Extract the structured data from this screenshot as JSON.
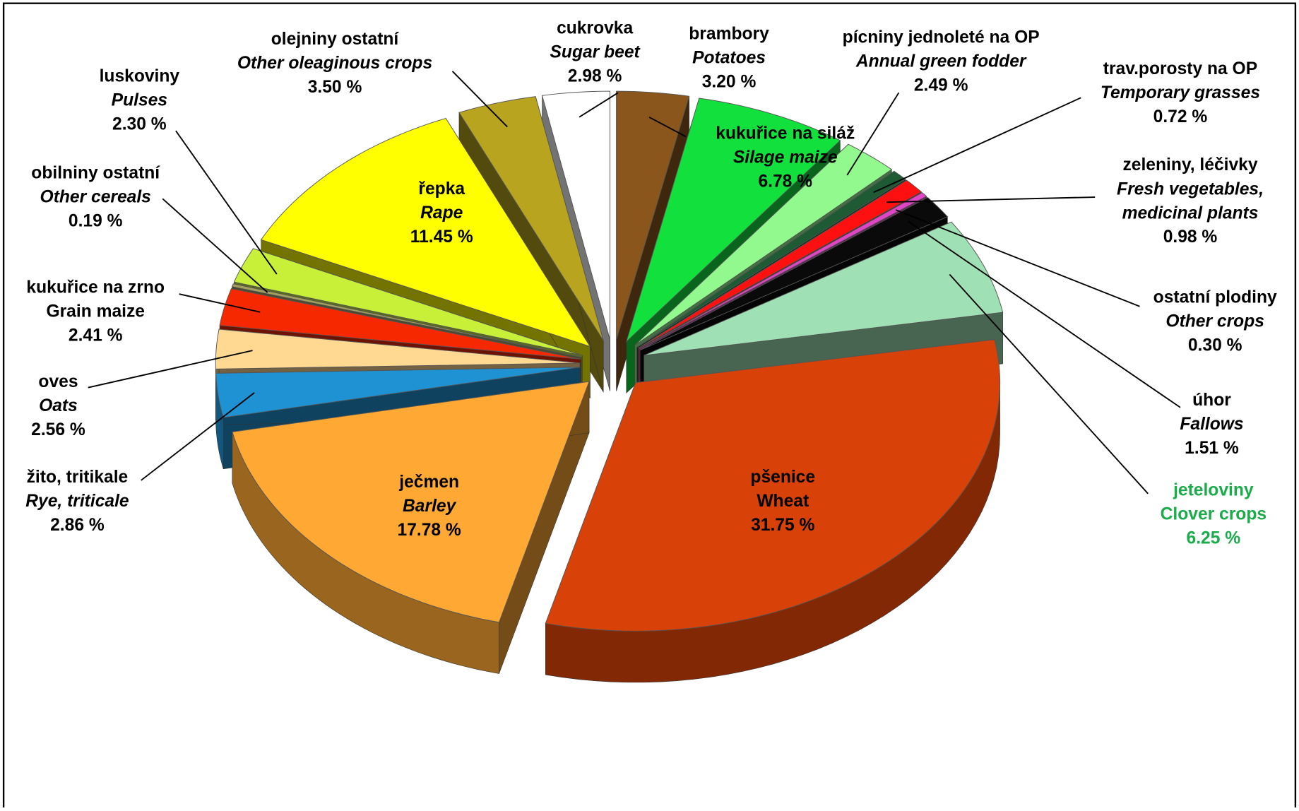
{
  "chart_data": {
    "type": "pie3d",
    "categories": [
      "brambory",
      "kukuřice na siláž",
      "pícniny jednoleté na OP",
      "trav.porosty na OP",
      "zeleniny, léčivky",
      "ostatní plodiny",
      "úhor",
      "jeteloviny",
      "pšenice",
      "ječmen",
      "žito, tritikale",
      "oves",
      "kukuřice na zrno",
      "obilniny ostatní",
      "luskoviny",
      "řepka",
      "olejniny ostatní",
      "cukrovka"
    ],
    "categories_en": [
      "Potatoes",
      "Silage maize",
      "Annual green fodder",
      "Temporary grasses",
      "Fresh vegetables, medicinal plants",
      "Other crops",
      "Fallows",
      "Clover crops",
      "Wheat",
      "Barley",
      "Rye, triticale",
      "Oats",
      "Grain maize",
      "Other cereals",
      "Pulses",
      "Rape",
      "Other oleaginous crops",
      "Sugar beet"
    ],
    "en_italic": [
      true,
      true,
      true,
      true,
      true,
      true,
      true,
      false,
      false,
      true,
      true,
      true,
      false,
      true,
      true,
      true,
      true,
      true
    ],
    "values": [
      3.2,
      6.78,
      2.49,
      0.72,
      0.98,
      0.3,
      1.51,
      6.25,
      31.75,
      17.78,
      2.86,
      2.56,
      2.41,
      0.19,
      2.3,
      11.45,
      3.5,
      2.98
    ],
    "value_labels": [
      "3.20 %",
      "6.78 %",
      "2.49 %",
      "0.72 %",
      "0.98 %",
      "0.30 %",
      "1.51 %",
      "6.25 %",
      "31.75 %",
      "17.78 %",
      "2.86 %",
      "2.56 %",
      "2.41 %",
      "0.19 %",
      "2.30 %",
      "11.45 %",
      "3.50 %",
      "2.98 %"
    ],
    "colors": [
      "#8a561c",
      "#12e03c",
      "#92f98e",
      "#1e5a34",
      "#ff1010",
      "#e045c8",
      "#0a0a0a",
      "#9fe0b4",
      "#d84208",
      "#ffa834",
      "#1e92d2",
      "#ffd892",
      "#f52800",
      "#a6a060",
      "#c8f038",
      "#ffff00",
      "#b8a41e",
      "#ffffff"
    ],
    "label_colors": [
      "#000000",
      "#000000",
      "#000000",
      "#000000",
      "#000000",
      "#000000",
      "#000000",
      "#1aab4a",
      "#000000",
      "#000000",
      "#000000",
      "#000000",
      "#000000",
      "#000000",
      "#000000",
      "#000000",
      "#000000",
      "#000000"
    ]
  }
}
